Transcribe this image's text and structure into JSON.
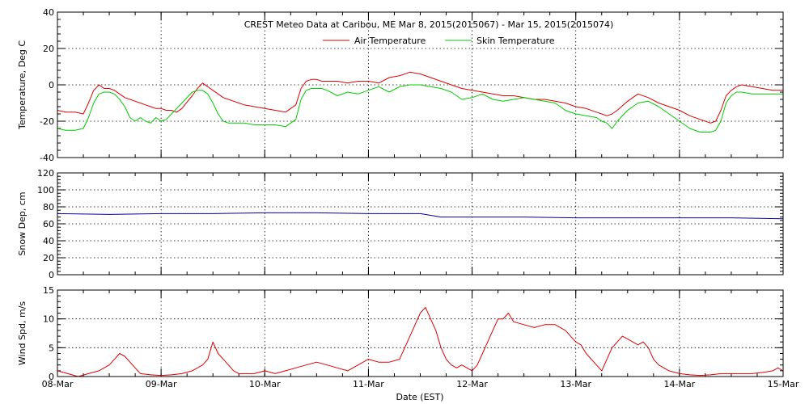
{
  "chart_data": {
    "type": "line",
    "title": "CREST Meteo Data at Caribou, ME   Mar  8, 2015(2015067) - Mar 15, 2015(2015074)",
    "xlabel": "Date (EST)",
    "x_ticks": [
      "08-Mar",
      "09-Mar",
      "10-Mar",
      "11-Mar",
      "12-Mar",
      "13-Mar",
      "14-Mar",
      "15-Mar"
    ],
    "xlim": [
      0,
      7
    ],
    "grid": true,
    "panels": [
      {
        "ylabel": "Temperature, Deg C",
        "ylim": [
          -40,
          40
        ],
        "yticks": [
          -40,
          -20,
          0,
          20,
          40
        ],
        "legend": "top",
        "series": [
          {
            "name": "Air Temperature",
            "color": "#dd0000",
            "x": [
              0,
              0.08,
              0.17,
              0.25,
              0.3,
              0.35,
              0.4,
              0.45,
              0.5,
              0.55,
              0.6,
              0.65,
              0.7,
              0.75,
              0.8,
              0.85,
              0.9,
              0.95,
              1.0,
              1.05,
              1.1,
              1.15,
              1.2,
              1.3,
              1.35,
              1.4,
              1.45,
              1.5,
              1.55,
              1.6,
              1.65,
              1.7,
              1.75,
              1.8,
              1.9,
              2.0,
              2.1,
              2.2,
              2.3,
              2.35,
              2.4,
              2.45,
              2.5,
              2.55,
              2.6,
              2.7,
              2.8,
              2.9,
              3.0,
              3.1,
              3.2,
              3.3,
              3.4,
              3.5,
              3.6,
              3.7,
              3.8,
              3.9,
              4.0,
              4.1,
              4.2,
              4.3,
              4.4,
              4.5,
              4.6,
              4.7,
              4.8,
              4.9,
              5.0,
              5.1,
              5.2,
              5.25,
              5.3,
              5.35,
              5.4,
              5.5,
              5.6,
              5.7,
              5.8,
              5.9,
              6.0,
              6.1,
              6.2,
              6.3,
              6.35,
              6.4,
              6.45,
              6.5,
              6.55,
              6.6,
              6.7,
              6.8,
              6.9,
              7.0
            ],
            "values": [
              -14,
              -15,
              -15,
              -16,
              -10,
              -3,
              0,
              -2,
              -2,
              -3,
              -5,
              -7,
              -8,
              -9,
              -10,
              -11,
              -12,
              -13,
              -13,
              -14,
              -14,
              -15,
              -13,
              -6,
              -2,
              1,
              -1,
              -3,
              -5,
              -7,
              -8,
              -9,
              -10,
              -11,
              -12,
              -13,
              -14,
              -15,
              -11,
              -2,
              2,
              3,
              3,
              2,
              2,
              2,
              1,
              2,
              2,
              1,
              4,
              5,
              7,
              6,
              4,
              2,
              0,
              -2,
              -3,
              -4,
              -5,
              -6,
              -6,
              -7,
              -8,
              -8,
              -9,
              -10,
              -12,
              -13,
              -15,
              -16,
              -17,
              -16,
              -14,
              -9,
              -5,
              -7,
              -10,
              -12,
              -14,
              -17,
              -19,
              -21,
              -20,
              -14,
              -6,
              -3,
              -1,
              0,
              -1,
              -2,
              -3,
              -3
            ]
          },
          {
            "name": "Skin Temperature",
            "color": "#00cc00",
            "x": [
              0,
              0.08,
              0.17,
              0.25,
              0.3,
              0.35,
              0.4,
              0.45,
              0.5,
              0.55,
              0.6,
              0.65,
              0.7,
              0.75,
              0.8,
              0.85,
              0.9,
              0.95,
              1.0,
              1.05,
              1.1,
              1.15,
              1.2,
              1.3,
              1.35,
              1.4,
              1.45,
              1.5,
              1.55,
              1.6,
              1.65,
              1.7,
              1.75,
              1.8,
              1.9,
              2.0,
              2.1,
              2.2,
              2.3,
              2.35,
              2.4,
              2.45,
              2.5,
              2.55,
              2.6,
              2.7,
              2.8,
              2.9,
              3.0,
              3.1,
              3.2,
              3.3,
              3.4,
              3.5,
              3.6,
              3.7,
              3.8,
              3.9,
              4.0,
              4.1,
              4.2,
              4.3,
              4.4,
              4.5,
              4.6,
              4.7,
              4.8,
              4.9,
              5.0,
              5.1,
              5.2,
              5.25,
              5.3,
              5.35,
              5.4,
              5.5,
              5.6,
              5.7,
              5.8,
              5.9,
              6.0,
              6.1,
              6.2,
              6.3,
              6.35,
              6.4,
              6.45,
              6.5,
              6.55,
              6.6,
              6.7,
              6.8,
              6.9,
              7.0
            ],
            "values": [
              -24,
              -25,
              -25,
              -24,
              -18,
              -10,
              -5,
              -4,
              -4,
              -5,
              -8,
              -12,
              -18,
              -20,
              -18,
              -20,
              -21,
              -18,
              -20,
              -19,
              -16,
              -13,
              -10,
              -4,
              -3,
              -3,
              -5,
              -10,
              -16,
              -20,
              -21,
              -21,
              -21,
              -21,
              -22,
              -22,
              -22,
              -23,
              -19,
              -8,
              -3,
              -2,
              -2,
              -2,
              -3,
              -6,
              -4,
              -5,
              -3,
              -1,
              -4,
              -1,
              0,
              0,
              -1,
              -2,
              -4,
              -8,
              -7,
              -5,
              -8,
              -9,
              -8,
              -7,
              -8,
              -9,
              -10,
              -14,
              -16,
              -17,
              -18,
              -20,
              -21,
              -24,
              -20,
              -14,
              -10,
              -9,
              -12,
              -16,
              -20,
              -24,
              -26,
              -26,
              -25,
              -20,
              -10,
              -6,
              -4,
              -4,
              -5,
              -5,
              -5,
              -5
            ]
          }
        ]
      },
      {
        "ylabel": "Snow Dep, cm",
        "ylim": [
          0,
          120
        ],
        "yticks": [
          0,
          20,
          40,
          60,
          80,
          100,
          120
        ],
        "series": [
          {
            "name": "",
            "color": "#000099",
            "x": [
              0,
              0.5,
              1.0,
              1.5,
              2.0,
              2.5,
              3.0,
              3.3,
              3.5,
              3.7,
              4.0,
              4.5,
              5.0,
              5.5,
              6.0,
              6.5,
              7.0
            ],
            "values": [
              72,
              71,
              72,
              72,
              73,
              73,
              72,
              72,
              72,
              68,
              68,
              68,
              67,
              67,
              67,
              67,
              66
            ]
          }
        ]
      },
      {
        "ylabel": "Wind Spd, m/s",
        "ylim": [
          0,
          15
        ],
        "yticks": [
          0,
          5,
          10,
          15
        ],
        "series": [
          {
            "name": "",
            "color": "#dd0000",
            "x": [
              0,
              0.1,
              0.2,
              0.3,
              0.4,
              0.5,
              0.55,
              0.6,
              0.65,
              0.7,
              0.75,
              0.8,
              0.9,
              1.0,
              1.1,
              1.2,
              1.3,
              1.4,
              1.45,
              1.5,
              1.55,
              1.6,
              1.65,
              1.7,
              1.75,
              1.8,
              1.9,
              2.0,
              2.1,
              2.2,
              2.3,
              2.4,
              2.5,
              2.6,
              2.7,
              2.8,
              2.9,
              3.0,
              3.1,
              3.2,
              3.3,
              3.35,
              3.4,
              3.45,
              3.5,
              3.55,
              3.6,
              3.65,
              3.7,
              3.75,
              3.8,
              3.85,
              3.9,
              3.95,
              4.0,
              4.05,
              4.1,
              4.15,
              4.2,
              4.25,
              4.3,
              4.35,
              4.4,
              4.5,
              4.6,
              4.7,
              4.8,
              4.9,
              5.0,
              5.05,
              5.1,
              5.15,
              5.2,
              5.25,
              5.3,
              5.35,
              5.4,
              5.45,
              5.5,
              5.55,
              5.6,
              5.65,
              5.7,
              5.75,
              5.8,
              5.9,
              6.0,
              6.1,
              6.2,
              6.3,
              6.4,
              6.5,
              6.6,
              6.7,
              6.8,
              6.9,
              6.95,
              7.0
            ],
            "values": [
              1,
              0.5,
              0,
              0.5,
              1,
              2,
              3,
              4,
              3.5,
              2.5,
              1.5,
              0.5,
              0.3,
              0.2,
              0.3,
              0.5,
              1,
              2,
              3,
              6,
              4,
              3,
              2,
              1,
              0.5,
              0.5,
              0.5,
              1,
              0.5,
              1,
              1.5,
              2,
              2.5,
              2,
              1.5,
              1,
              2,
              3,
              2.5,
              2.5,
              3,
              5,
              7,
              9,
              11,
              12,
              10,
              8,
              5,
              3,
              2,
              1.5,
              2,
              1.5,
              1,
              2,
              4,
              6,
              8,
              10,
              10,
              11,
              9.5,
              9,
              8.5,
              9,
              9,
              8,
              6,
              5.5,
              4,
              3,
              2,
              1,
              3,
              5,
              6,
              7,
              6.5,
              6,
              5.5,
              6,
              5,
              3,
              2,
              1,
              0.5,
              0.3,
              0.2,
              0.3,
              0.5,
              0.5,
              0.5,
              0.5,
              0.7,
              1,
              1.5,
              1
            ]
          }
        ]
      }
    ]
  }
}
